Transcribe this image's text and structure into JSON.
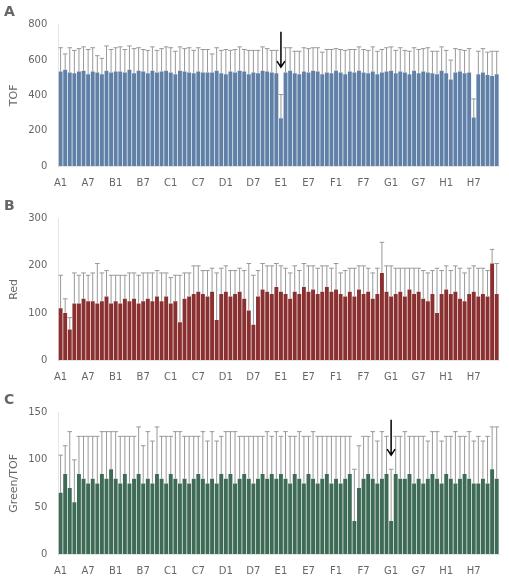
{
  "chart_data": [
    {
      "type": "bar",
      "title": "A",
      "ylabel": "TOF",
      "categories": [
        "A1",
        null,
        null,
        null,
        null,
        null,
        "A7",
        null,
        null,
        null,
        null,
        null,
        "B1",
        null,
        null,
        null,
        null,
        null,
        "B7",
        null,
        null,
        null,
        null,
        null,
        "C1",
        null,
        null,
        null,
        null,
        null,
        "C7",
        null,
        null,
        null,
        null,
        null,
        "D1",
        null,
        null,
        null,
        null,
        null,
        "D7",
        null,
        null,
        null,
        null,
        null,
        "E1",
        null,
        null,
        null,
        null,
        null,
        "E7",
        null,
        null,
        null,
        null,
        null,
        "F1",
        null,
        null,
        null,
        null,
        null,
        "F7",
        null,
        null,
        null,
        null,
        null,
        "G1",
        null,
        null,
        null,
        null,
        null,
        "G7",
        null,
        null,
        null,
        null,
        null,
        "H1",
        null,
        null,
        null,
        null,
        null,
        "H7",
        null,
        null,
        null,
        null,
        null
      ],
      "values": [
        535,
        545,
        530,
        525,
        535,
        540,
        520,
        535,
        530,
        520,
        540,
        530,
        535,
        535,
        530,
        545,
        525,
        540,
        535,
        525,
        540,
        530,
        535,
        540,
        530,
        520,
        540,
        535,
        530,
        525,
        535,
        530,
        530,
        530,
        540,
        525,
        520,
        535,
        530,
        540,
        535,
        520,
        530,
        525,
        540,
        535,
        530,
        525,
        270,
        530,
        540,
        525,
        520,
        535,
        530,
        540,
        535,
        520,
        530,
        525,
        540,
        530,
        520,
        535,
        530,
        540,
        530,
        525,
        535,
        520,
        530,
        535,
        540,
        525,
        535,
        530,
        520,
        540,
        525,
        535,
        530,
        525,
        520,
        540,
        525,
        490,
        530,
        535,
        525,
        530,
        275,
        520,
        530,
        515,
        510,
        520
      ],
      "errors_upper": [
        135,
        90,
        140,
        130,
        130,
        135,
        140,
        135,
        95,
        90,
        140,
        130,
        135,
        140,
        130,
        135,
        140,
        130,
        125,
        130,
        135,
        125,
        130,
        135,
        140,
        130,
        135,
        130,
        140,
        130,
        135,
        130,
        130,
        105,
        130,
        130,
        140,
        120,
        130,
        135,
        125,
        135,
        125,
        130,
        135,
        130,
        125,
        130,
        135,
        140,
        130,
        125,
        130,
        135,
        135,
        130,
        135,
        125,
        130,
        135,
        125,
        130,
        135,
        125,
        130,
        135,
        130,
        130,
        140,
        130,
        130,
        135,
        135,
        130,
        135,
        125,
        130,
        130,
        135,
        130,
        140,
        125,
        130,
        135,
        130,
        110,
        135,
        125,
        130,
        135,
        105,
        130,
        135,
        130,
        140,
        130
      ],
      "color": "#6080a8",
      "arrow_index": 48,
      "ylim": [
        0,
        800
      ],
      "yticks": [
        0,
        200,
        400,
        600,
        800
      ],
      "grid": false
    },
    {
      "type": "bar",
      "title": "B",
      "ylabel": "Red",
      "categories": [
        "A1",
        null,
        null,
        null,
        null,
        null,
        "A7",
        null,
        null,
        null,
        null,
        null,
        "B1",
        null,
        null,
        null,
        null,
        null,
        "B7",
        null,
        null,
        null,
        null,
        null,
        "C1",
        null,
        null,
        null,
        null,
        null,
        "C7",
        null,
        null,
        null,
        null,
        null,
        "D1",
        null,
        null,
        null,
        null,
        null,
        "D7",
        null,
        null,
        null,
        null,
        null,
        "E1",
        null,
        null,
        null,
        null,
        null,
        "E7",
        null,
        null,
        null,
        null,
        null,
        "F1",
        null,
        null,
        null,
        null,
        null,
        "F7",
        null,
        null,
        null,
        null,
        null,
        "G1",
        null,
        null,
        null,
        null,
        null,
        "G7",
        null,
        null,
        null,
        null,
        null,
        "H1",
        null,
        null,
        null,
        null,
        null,
        "H7",
        null,
        null,
        null,
        null,
        null
      ],
      "values": [
        110,
        100,
        65,
        120,
        120,
        130,
        125,
        125,
        120,
        125,
        135,
        120,
        125,
        120,
        130,
        125,
        130,
        120,
        125,
        130,
        125,
        135,
        125,
        135,
        120,
        125,
        80,
        130,
        135,
        140,
        145,
        140,
        135,
        145,
        85,
        140,
        145,
        135,
        140,
        145,
        130,
        105,
        75,
        135,
        150,
        145,
        140,
        155,
        145,
        140,
        130,
        145,
        140,
        155,
        145,
        150,
        140,
        145,
        155,
        145,
        150,
        140,
        135,
        145,
        135,
        150,
        140,
        145,
        130,
        140,
        185,
        145,
        135,
        140,
        145,
        135,
        150,
        140,
        145,
        130,
        125,
        140,
        100,
        140,
        150,
        140,
        145,
        130,
        125,
        140,
        145,
        135,
        140,
        135,
        205,
        140
      ],
      "errors_upper": [
        70,
        30,
        25,
        65,
        60,
        55,
        55,
        60,
        85,
        60,
        55,
        60,
        55,
        60,
        50,
        60,
        55,
        60,
        60,
        55,
        60,
        55,
        60,
        50,
        55,
        55,
        100,
        55,
        50,
        60,
        55,
        50,
        55,
        50,
        100,
        55,
        55,
        55,
        50,
        50,
        60,
        100,
        105,
        55,
        55,
        55,
        60,
        50,
        55,
        55,
        55,
        55,
        50,
        50,
        55,
        50,
        55,
        55,
        45,
        50,
        55,
        45,
        55,
        50,
        60,
        50,
        60,
        50,
        55,
        55,
        65,
        55,
        65,
        55,
        50,
        60,
        45,
        55,
        50,
        60,
        60,
        50,
        95,
        50,
        50,
        50,
        55,
        65,
        60,
        55,
        55,
        60,
        55,
        55,
        30,
        65
      ],
      "color": "#8b3030",
      "ylim": [
        0,
        300
      ],
      "yticks": [
        0,
        100,
        200,
        300
      ],
      "grid": false
    },
    {
      "type": "bar",
      "title": "C",
      "ylabel": "Green/TOF",
      "categories": [
        "A1",
        null,
        null,
        null,
        null,
        null,
        "A7",
        null,
        null,
        null,
        null,
        null,
        "B1",
        null,
        null,
        null,
        null,
        null,
        "B7",
        null,
        null,
        null,
        null,
        null,
        "C1",
        null,
        null,
        null,
        null,
        null,
        "C7",
        null,
        null,
        null,
        null,
        null,
        "D1",
        null,
        null,
        null,
        null,
        null,
        "D7",
        null,
        null,
        null,
        null,
        null,
        "E1",
        null,
        null,
        null,
        null,
        null,
        "E7",
        null,
        null,
        null,
        null,
        null,
        "F1",
        null,
        null,
        null,
        null,
        null,
        "F7",
        null,
        null,
        null,
        null,
        null,
        "G1",
        null,
        null,
        null,
        null,
        null,
        "G7",
        null,
        null,
        null,
        null,
        null,
        "H1",
        null,
        null,
        null,
        null,
        null,
        "H7",
        null,
        null,
        null,
        null,
        null
      ],
      "values": [
        65,
        85,
        70,
        55,
        85,
        80,
        75,
        80,
        75,
        85,
        80,
        90,
        80,
        75,
        85,
        75,
        80,
        85,
        75,
        80,
        75,
        85,
        80,
        75,
        85,
        80,
        75,
        80,
        75,
        80,
        85,
        80,
        75,
        80,
        75,
        85,
        80,
        85,
        75,
        80,
        85,
        80,
        75,
        80,
        85,
        80,
        85,
        80,
        85,
        80,
        75,
        85,
        80,
        75,
        85,
        80,
        75,
        80,
        85,
        75,
        80,
        75,
        80,
        85,
        35,
        70,
        80,
        85,
        80,
        75,
        80,
        85,
        35,
        85,
        80,
        80,
        85,
        75,
        80,
        75,
        80,
        85,
        80,
        75,
        85,
        80,
        75,
        80,
        85,
        80,
        75,
        75,
        80,
        75,
        90,
        80
      ],
      "errors_upper": [
        40,
        30,
        60,
        45,
        40,
        45,
        50,
        45,
        50,
        45,
        50,
        40,
        50,
        50,
        40,
        50,
        45,
        50,
        40,
        50,
        45,
        50,
        45,
        50,
        40,
        50,
        55,
        45,
        50,
        45,
        40,
        50,
        45,
        50,
        45,
        40,
        50,
        45,
        55,
        45,
        40,
        45,
        50,
        45,
        40,
        50,
        40,
        50,
        40,
        50,
        50,
        40,
        50,
        50,
        40,
        50,
        50,
        45,
        40,
        50,
        45,
        50,
        45,
        40,
        55,
        45,
        45,
        40,
        50,
        45,
        50,
        40,
        55,
        40,
        45,
        50,
        40,
        50,
        45,
        50,
        40,
        45,
        50,
        45,
        40,
        45,
        55,
        45,
        40,
        50,
        45,
        50,
        40,
        50,
        45,
        55
      ],
      "color": "#3d6b55",
      "arrow_index": 72,
      "ylim": [
        0,
        150
      ],
      "yticks": [
        0,
        50,
        100,
        150
      ],
      "grid": false
    }
  ]
}
